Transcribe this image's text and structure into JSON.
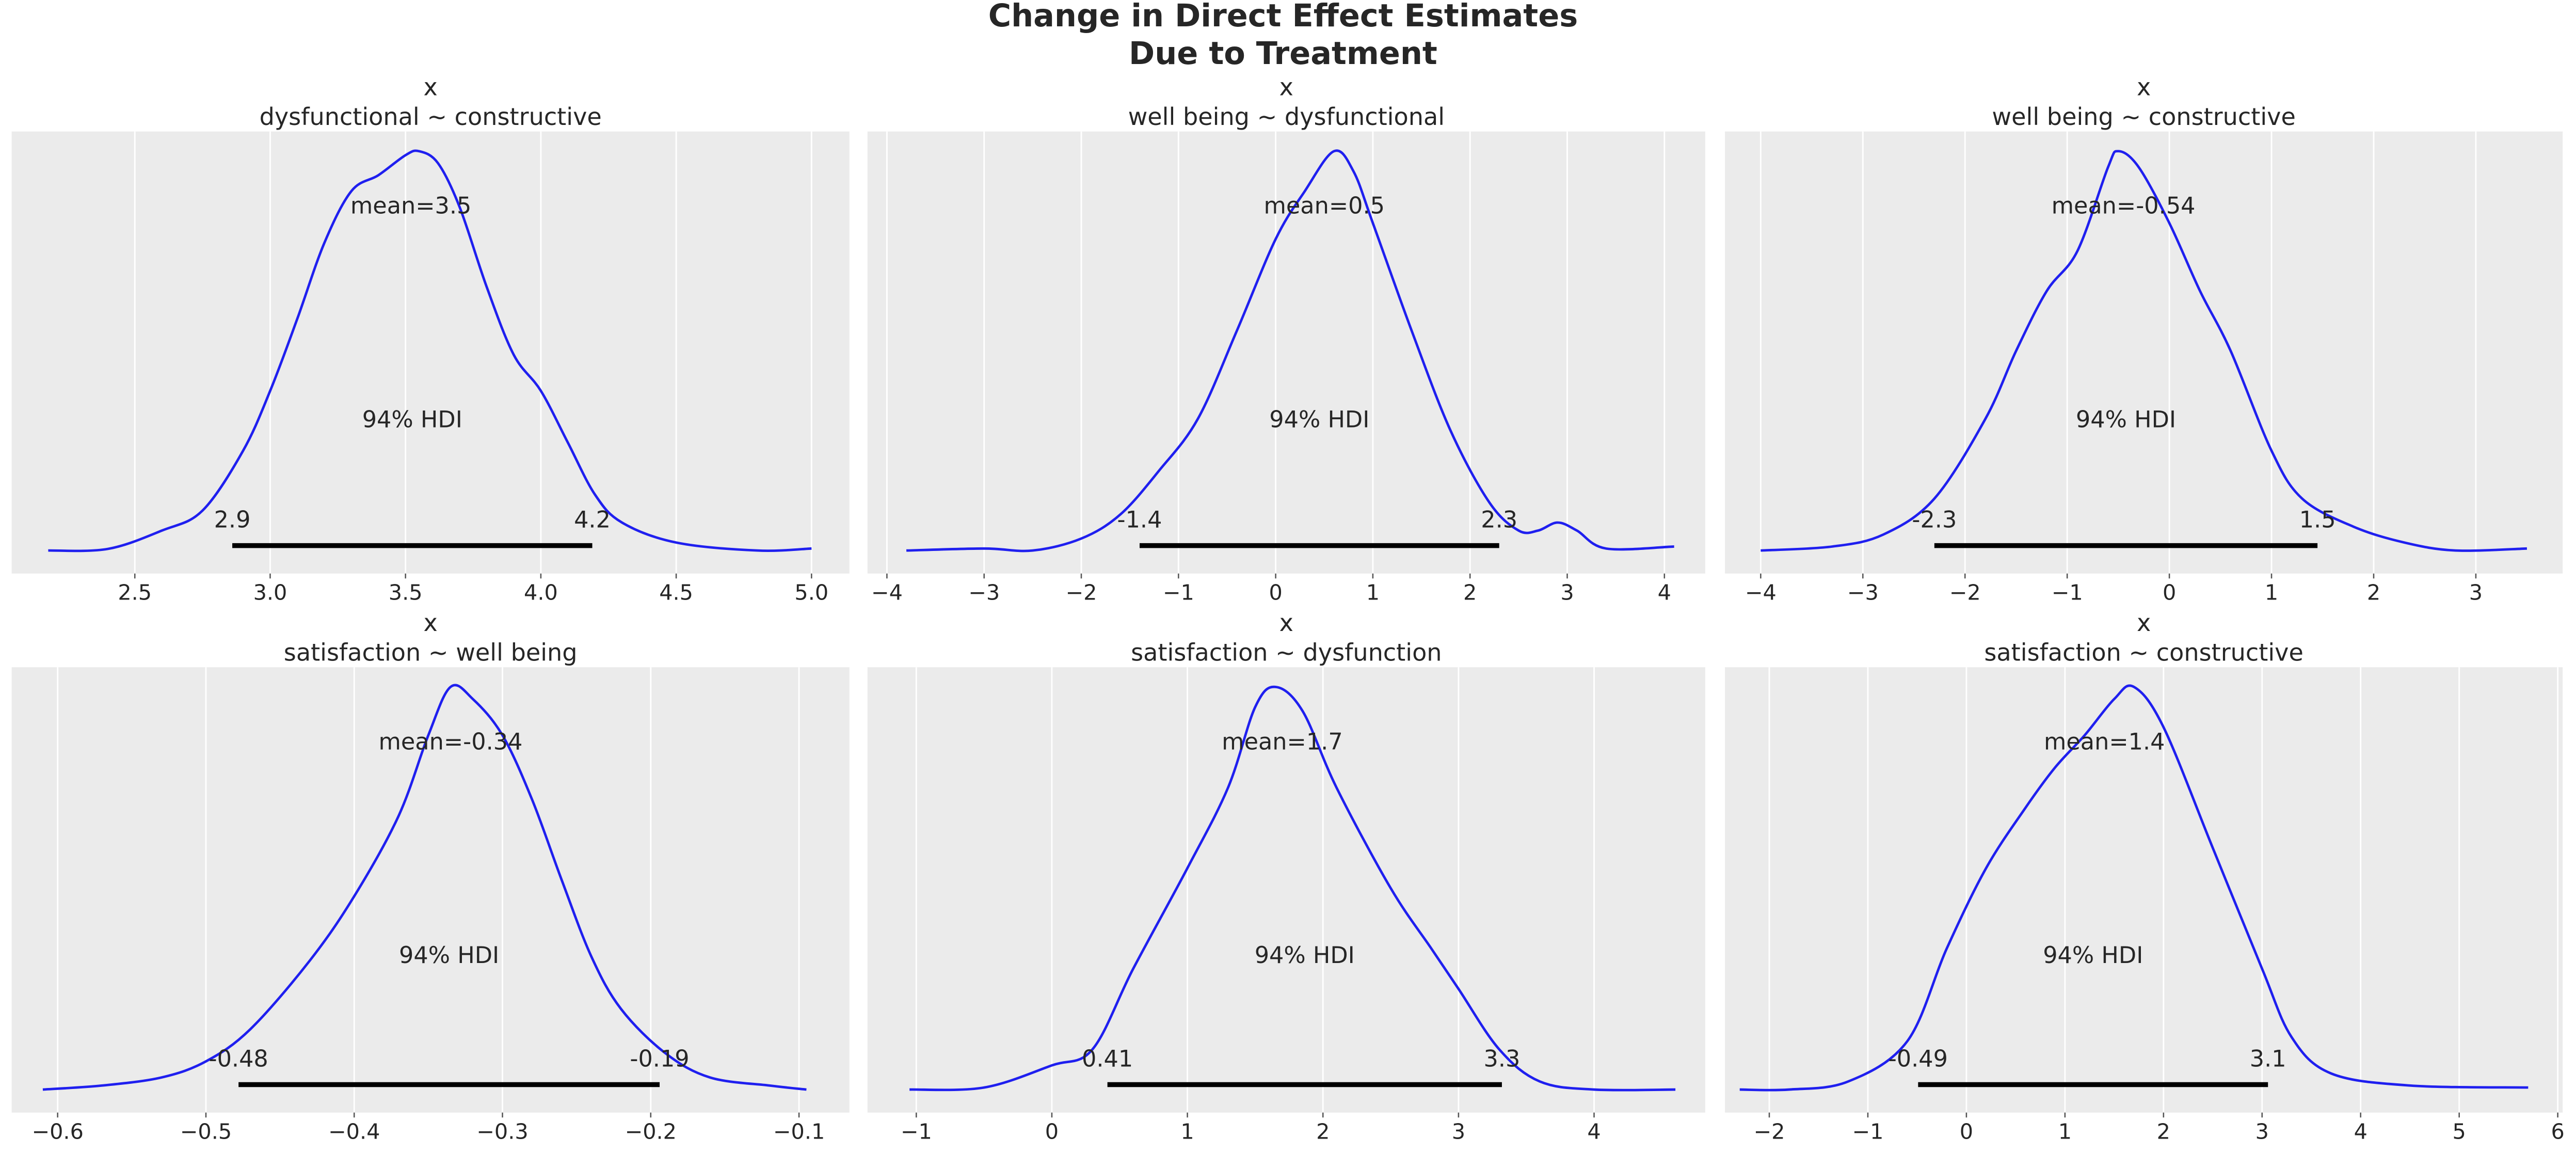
{
  "chart_data": {
    "type": "line",
    "title": [
      "Change in Direct Effect Estimates",
      "Due to Treatment"
    ],
    "grid": "vertical",
    "colors": {
      "curve": "#1f1fef",
      "hdi": "#000000",
      "background": "#ebebeb",
      "grid": "#ffffff"
    },
    "hdi_label": "94% HDI",
    "panels": [
      {
        "var": "x",
        "subtitle": "dysfunctional ~ constructive",
        "xlim": [
          2.045,
          5.14
        ],
        "xticks": [
          2.5,
          3.0,
          3.5,
          4.0,
          4.5,
          5.0
        ],
        "tick_labels": [
          "2.5",
          "3.0",
          "3.5",
          "4.0",
          "4.5",
          "5.0"
        ],
        "mean": 3.5,
        "mean_label": "mean=3.5",
        "mean_pos": 3.52,
        "hdi": [
          2.86,
          4.19
        ],
        "hdi_labels": [
          "2.9",
          "4.2"
        ],
        "density": [
          [
            2.18,
            0
          ],
          [
            2.4,
            0.004
          ],
          [
            2.6,
            0.05
          ],
          [
            2.75,
            0.1
          ],
          [
            2.9,
            0.25
          ],
          [
            3.0,
            0.4
          ],
          [
            3.1,
            0.58
          ],
          [
            3.2,
            0.77
          ],
          [
            3.3,
            0.9
          ],
          [
            3.4,
            0.94
          ],
          [
            3.5,
            0.99
          ],
          [
            3.55,
            1.0
          ],
          [
            3.62,
            0.97
          ],
          [
            3.7,
            0.86
          ],
          [
            3.8,
            0.66
          ],
          [
            3.9,
            0.49
          ],
          [
            4.0,
            0.4
          ],
          [
            4.1,
            0.27
          ],
          [
            4.2,
            0.14
          ],
          [
            4.3,
            0.07
          ],
          [
            4.5,
            0.02
          ],
          [
            4.8,
            0.0
          ],
          [
            5.0,
            0.005
          ]
        ]
      },
      {
        "var": "x",
        "subtitle": "well being ~ dysfunctional",
        "xlim": [
          -4.2,
          4.42
        ],
        "xticks": [
          -4,
          -3,
          -2,
          -1,
          0,
          1,
          2,
          3,
          4
        ],
        "tick_labels": [
          "−4",
          "−3",
          "−2",
          "−1",
          "0",
          "1",
          "2",
          "3",
          "4"
        ],
        "mean": 0.5,
        "mean_label": "mean=0.5",
        "mean_pos": 0.5,
        "hdi": [
          -1.4,
          2.3
        ],
        "hdi_labels": [
          "-1.4",
          "2.3"
        ],
        "density": [
          [
            -3.8,
            0
          ],
          [
            -3,
            0.005
          ],
          [
            -2.5,
            0
          ],
          [
            -2,
            0.03
          ],
          [
            -1.6,
            0.09
          ],
          [
            -1.2,
            0.2
          ],
          [
            -0.8,
            0.33
          ],
          [
            -0.4,
            0.55
          ],
          [
            0,
            0.78
          ],
          [
            0.3,
            0.9
          ],
          [
            0.6,
            1.0
          ],
          [
            0.8,
            0.95
          ],
          [
            1.0,
            0.82
          ],
          [
            1.4,
            0.55
          ],
          [
            1.8,
            0.3
          ],
          [
            2.2,
            0.12
          ],
          [
            2.5,
            0.05
          ],
          [
            2.7,
            0.05
          ],
          [
            2.9,
            0.07
          ],
          [
            3.1,
            0.05
          ],
          [
            3.4,
            0.005
          ],
          [
            4.1,
            0.01
          ]
        ]
      },
      {
        "var": "x",
        "subtitle": "well being ~ constructive",
        "xlim": [
          -4.35,
          3.85
        ],
        "xticks": [
          -4,
          -3,
          -2,
          -1,
          0,
          1,
          2,
          3
        ],
        "tick_labels": [
          "−4",
          "−3",
          "−2",
          "−1",
          "0",
          "1",
          "2",
          "3"
        ],
        "mean": -0.54,
        "mean_label": "mean=-0.54",
        "mean_pos": -0.45,
        "hdi": [
          -2.3,
          1.45
        ],
        "hdi_labels": [
          "-2.3",
          "1.5"
        ],
        "density": [
          [
            -4,
            0
          ],
          [
            -3.3,
            0.01
          ],
          [
            -2.8,
            0.04
          ],
          [
            -2.3,
            0.13
          ],
          [
            -1.8,
            0.33
          ],
          [
            -1.5,
            0.5
          ],
          [
            -1.2,
            0.65
          ],
          [
            -0.9,
            0.75
          ],
          [
            -0.6,
            0.96
          ],
          [
            -0.5,
            1.0
          ],
          [
            -0.3,
            0.96
          ],
          [
            0,
            0.82
          ],
          [
            0.3,
            0.65
          ],
          [
            0.6,
            0.5
          ],
          [
            1.0,
            0.25
          ],
          [
            1.3,
            0.13
          ],
          [
            1.8,
            0.06
          ],
          [
            2.3,
            0.02
          ],
          [
            2.8,
            0
          ],
          [
            3.5,
            0.005
          ]
        ]
      },
      {
        "var": "x",
        "subtitle": "satisfaction ~ well being",
        "xlim": [
          -0.631,
          -0.066
        ],
        "xticks": [
          -0.6,
          -0.5,
          -0.4,
          -0.3,
          -0.2,
          -0.1
        ],
        "tick_labels": [
          "−0.6",
          "−0.5",
          "−0.4",
          "−0.3",
          "−0.2",
          "−0.1"
        ],
        "mean": -0.34,
        "mean_label": "mean=-0.34",
        "mean_pos": -0.335,
        "hdi": [
          -0.478,
          -0.194
        ],
        "hdi_labels": [
          "-0.48",
          "-0.19"
        ],
        "density": [
          [
            -0.61,
            0
          ],
          [
            -0.57,
            0.01
          ],
          [
            -0.53,
            0.03
          ],
          [
            -0.5,
            0.07
          ],
          [
            -0.47,
            0.15
          ],
          [
            -0.43,
            0.32
          ],
          [
            -0.4,
            0.48
          ],
          [
            -0.37,
            0.68
          ],
          [
            -0.35,
            0.88
          ],
          [
            -0.335,
            1.0
          ],
          [
            -0.32,
            0.97
          ],
          [
            -0.3,
            0.88
          ],
          [
            -0.28,
            0.72
          ],
          [
            -0.26,
            0.52
          ],
          [
            -0.24,
            0.33
          ],
          [
            -0.22,
            0.2
          ],
          [
            -0.19,
            0.09
          ],
          [
            -0.16,
            0.03
          ],
          [
            -0.12,
            0.01
          ],
          [
            -0.095,
            0
          ]
        ]
      },
      {
        "var": "x",
        "subtitle": "satisfaction ~ dysfunction",
        "xlim": [
          -1.36,
          4.82
        ],
        "xticks": [
          -1,
          0,
          1,
          2,
          3,
          4
        ],
        "tick_labels": [
          "−1",
          "0",
          "1",
          "2",
          "3",
          "4"
        ],
        "mean": 1.7,
        "mean_label": "mean=1.7",
        "mean_pos": 1.7,
        "hdi": [
          0.41,
          3.32
        ],
        "hdi_labels": [
          "0.41",
          "3.3"
        ],
        "density": [
          [
            -1.05,
            0
          ],
          [
            -0.5,
            0.005
          ],
          [
            0,
            0.06
          ],
          [
            0.3,
            0.1
          ],
          [
            0.6,
            0.3
          ],
          [
            1.0,
            0.55
          ],
          [
            1.3,
            0.75
          ],
          [
            1.5,
            0.95
          ],
          [
            1.65,
            1.0
          ],
          [
            1.85,
            0.94
          ],
          [
            2.1,
            0.75
          ],
          [
            2.5,
            0.5
          ],
          [
            2.8,
            0.35
          ],
          [
            3.0,
            0.25
          ],
          [
            3.3,
            0.1
          ],
          [
            3.6,
            0.02
          ],
          [
            4.0,
            0
          ],
          [
            4.6,
            0
          ]
        ]
      },
      {
        "var": "x",
        "subtitle": "satisfaction ~ constructive",
        "xlim": [
          -2.45,
          6.05
        ],
        "xticks": [
          -2,
          -1,
          0,
          1,
          2,
          3,
          4,
          5,
          6
        ],
        "tick_labels": [
          "−2",
          "−1",
          "0",
          "1",
          "2",
          "3",
          "4",
          "5",
          "6"
        ],
        "mean": 1.4,
        "mean_label": "mean=1.4",
        "mean_pos": 1.4,
        "hdi": [
          -0.49,
          3.06
        ],
        "hdi_labels": [
          "-0.49",
          "3.1"
        ],
        "density": [
          [
            -2.3,
            0
          ],
          [
            -1.8,
            0
          ],
          [
            -1.2,
            0.02
          ],
          [
            -0.6,
            0.12
          ],
          [
            -0.2,
            0.35
          ],
          [
            0.2,
            0.55
          ],
          [
            0.6,
            0.7
          ],
          [
            0.9,
            0.8
          ],
          [
            1.2,
            0.88
          ],
          [
            1.5,
            0.97
          ],
          [
            1.7,
            1.0
          ],
          [
            2.0,
            0.9
          ],
          [
            2.5,
            0.6
          ],
          [
            3.0,
            0.3
          ],
          [
            3.3,
            0.13
          ],
          [
            3.7,
            0.04
          ],
          [
            4.5,
            0.01
          ],
          [
            5.7,
            0.005
          ]
        ]
      }
    ]
  }
}
